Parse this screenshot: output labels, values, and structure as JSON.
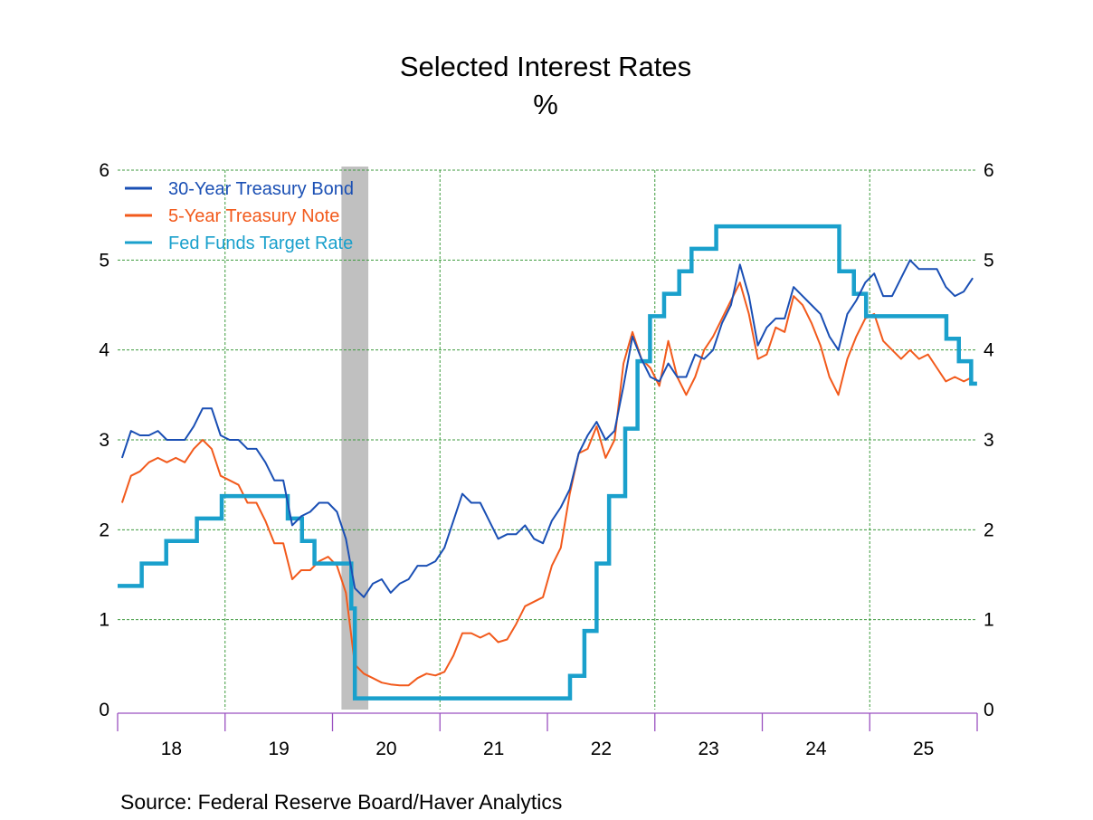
{
  "chart_data": {
    "type": "line",
    "title": "Selected Interest Rates",
    "subtitle": "%",
    "source": "Source:  Federal Reserve Board/Haver Analytics",
    "ylim": [
      0,
      6
    ],
    "yticks": [
      0,
      1,
      2,
      3,
      4,
      5,
      6
    ],
    "xlim": [
      "2018-01",
      "2025-12"
    ],
    "xtick_labels": [
      "18",
      "19",
      "20",
      "21",
      "22",
      "23",
      "24",
      "25"
    ],
    "grid": true,
    "legend_placement": "top-left",
    "recession": [
      "2020-02",
      "2020-04"
    ],
    "colors": {
      "bond30": "#1a4fb4",
      "note5": "#f25a1c",
      "fedfunds": "#1aa0cc",
      "recession": "#c0c0c0",
      "grid": "#3c9a3c",
      "axis": "#9a50c0"
    },
    "x": [
      "2018-01",
      "2018-02",
      "2018-03",
      "2018-04",
      "2018-05",
      "2018-06",
      "2018-07",
      "2018-08",
      "2018-09",
      "2018-10",
      "2018-11",
      "2018-12",
      "2019-01",
      "2019-02",
      "2019-03",
      "2019-04",
      "2019-05",
      "2019-06",
      "2019-07",
      "2019-08",
      "2019-09",
      "2019-10",
      "2019-11",
      "2019-12",
      "2020-01",
      "2020-02",
      "2020-03",
      "2020-04",
      "2020-05",
      "2020-06",
      "2020-07",
      "2020-08",
      "2020-09",
      "2020-10",
      "2020-11",
      "2020-12",
      "2021-01",
      "2021-02",
      "2021-03",
      "2021-04",
      "2021-05",
      "2021-06",
      "2021-07",
      "2021-08",
      "2021-09",
      "2021-10",
      "2021-11",
      "2021-12",
      "2022-01",
      "2022-02",
      "2022-03",
      "2022-04",
      "2022-05",
      "2022-06",
      "2022-07",
      "2022-08",
      "2022-09",
      "2022-10",
      "2022-11",
      "2022-12",
      "2023-01",
      "2023-02",
      "2023-03",
      "2023-04",
      "2023-05",
      "2023-06",
      "2023-07",
      "2023-08",
      "2023-09",
      "2023-10",
      "2023-11",
      "2023-12",
      "2024-01",
      "2024-02",
      "2024-03",
      "2024-04",
      "2024-05",
      "2024-06",
      "2024-07",
      "2024-08",
      "2024-09",
      "2024-10",
      "2024-11",
      "2024-12",
      "2025-01",
      "2025-02",
      "2025-03",
      "2025-04",
      "2025-05",
      "2025-06",
      "2025-07",
      "2025-08",
      "2025-09",
      "2025-10",
      "2025-11",
      "2025-12"
    ],
    "series": [
      {
        "name": "30-Year Treasury Bond",
        "color_key": "bond30",
        "values": [
          2.8,
          3.1,
          3.05,
          3.05,
          3.1,
          3.0,
          3.0,
          3.0,
          3.15,
          3.35,
          3.35,
          3.05,
          3.0,
          3.0,
          2.9,
          2.9,
          2.75,
          2.55,
          2.55,
          2.05,
          2.15,
          2.2,
          2.3,
          2.3,
          2.2,
          1.9,
          1.35,
          1.25,
          1.4,
          1.45,
          1.3,
          1.4,
          1.45,
          1.6,
          1.6,
          1.65,
          1.8,
          2.1,
          2.4,
          2.3,
          2.3,
          2.1,
          1.9,
          1.95,
          1.95,
          2.05,
          1.9,
          1.85,
          2.1,
          2.25,
          2.45,
          2.85,
          3.05,
          3.2,
          3.0,
          3.1,
          3.6,
          4.15,
          3.9,
          3.7,
          3.65,
          3.85,
          3.7,
          3.7,
          3.95,
          3.9,
          4.0,
          4.3,
          4.5,
          4.95,
          4.6,
          4.05,
          4.25,
          4.35,
          4.35,
          4.7,
          4.6,
          4.5,
          4.4,
          4.15,
          4.0,
          4.4,
          4.55,
          4.75,
          4.85,
          4.6,
          4.6,
          4.8,
          5.0,
          4.9,
          4.9,
          4.9,
          4.7,
          4.6,
          4.65,
          4.8
        ]
      },
      {
        "name": "5-Year Treasury Note",
        "color_key": "note5",
        "values": [
          2.3,
          2.6,
          2.65,
          2.75,
          2.8,
          2.75,
          2.8,
          2.75,
          2.9,
          3.0,
          2.9,
          2.6,
          2.55,
          2.5,
          2.3,
          2.3,
          2.1,
          1.85,
          1.85,
          1.45,
          1.55,
          1.55,
          1.65,
          1.7,
          1.6,
          1.3,
          0.5,
          0.4,
          0.35,
          0.3,
          0.28,
          0.27,
          0.27,
          0.35,
          0.4,
          0.38,
          0.42,
          0.6,
          0.85,
          0.85,
          0.8,
          0.85,
          0.75,
          0.78,
          0.95,
          1.15,
          1.2,
          1.25,
          1.6,
          1.8,
          2.4,
          2.85,
          2.9,
          3.15,
          2.8,
          3.0,
          3.85,
          4.2,
          3.9,
          3.8,
          3.6,
          4.1,
          3.7,
          3.5,
          3.7,
          4.0,
          4.15,
          4.35,
          4.55,
          4.75,
          4.4,
          3.9,
          3.95,
          4.25,
          4.2,
          4.6,
          4.5,
          4.3,
          4.05,
          3.7,
          3.5,
          3.9,
          4.15,
          4.35,
          4.4,
          4.1,
          4.0,
          3.9,
          4.0,
          3.9,
          3.95,
          3.8,
          3.65,
          3.7,
          3.65,
          3.7
        ]
      },
      {
        "name": "Fed Funds Target Rate",
        "color_key": "fedfunds",
        "step": true,
        "points": [
          [
            "2018-01-01",
            1.375
          ],
          [
            "2018-03-22",
            1.625
          ],
          [
            "2018-06-14",
            1.875
          ],
          [
            "2018-09-27",
            2.125
          ],
          [
            "2018-12-20",
            2.375
          ],
          [
            "2019-08-01",
            2.125
          ],
          [
            "2019-09-19",
            1.875
          ],
          [
            "2019-10-31",
            1.625
          ],
          [
            "2020-03-04",
            1.125
          ],
          [
            "2020-03-16",
            0.125
          ],
          [
            "2022-03-17",
            0.375
          ],
          [
            "2022-05-05",
            0.875
          ],
          [
            "2022-06-16",
            1.625
          ],
          [
            "2022-07-28",
            2.375
          ],
          [
            "2022-09-22",
            3.125
          ],
          [
            "2022-11-03",
            3.875
          ],
          [
            "2022-12-15",
            4.375
          ],
          [
            "2023-02-02",
            4.625
          ],
          [
            "2023-03-23",
            4.875
          ],
          [
            "2023-05-04",
            5.125
          ],
          [
            "2023-07-27",
            5.375
          ],
          [
            "2024-09-19",
            4.875
          ],
          [
            "2024-11-08",
            4.625
          ],
          [
            "2024-12-19",
            4.375
          ],
          [
            "2025-09-18",
            4.125
          ],
          [
            "2025-10-30",
            3.875
          ],
          [
            "2025-12-11",
            3.625
          ],
          [
            "2025-12-31",
            3.625
          ]
        ]
      }
    ]
  }
}
